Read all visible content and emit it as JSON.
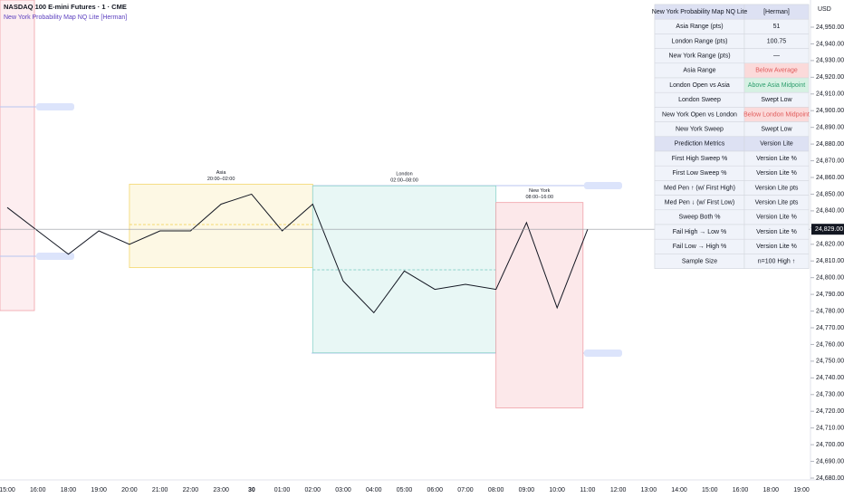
{
  "chart_data": {
    "type": "line",
    "title": "NASDAQ 100 E-mini Futures · 1 · CME",
    "subtitle": "New York Probability Map NQ Lite [Herman]",
    "color": "#131722",
    "categories": [
      "15:00",
      "16:00",
      "18:00",
      "19:00",
      "20:00",
      "21:00",
      "22:00",
      "23:00",
      "30",
      "01:00",
      "02:00",
      "03:00",
      "04:00",
      "05:00",
      "06:00",
      "07:00",
      "08:00",
      "09:00",
      "10:00",
      "11:00",
      "12:00",
      "13:00",
      "14:00",
      "15:00",
      "16:00",
      "18:00",
      "19:00"
    ],
    "values": [
      24842,
      24828,
      24814,
      24828,
      24820,
      24828,
      24828,
      24844,
      24850,
      24828,
      24844,
      24798,
      24779,
      24804,
      24793,
      24796,
      24793,
      24833,
      24782,
      24829,
      null,
      null,
      null,
      null,
      null,
      null,
      null
    ],
    "ylim": [
      24950,
      24680
    ],
    "yticks": [
      {
        "value": 24950,
        "label": "24,950.00"
      },
      {
        "value": 24940,
        "label": "24,940.00"
      },
      {
        "value": 24930,
        "label": "24,930.00"
      },
      {
        "value": 24920,
        "label": "24,920.00"
      },
      {
        "value": 24910,
        "label": "24,910.00"
      },
      {
        "value": 24900,
        "label": "24,900.00"
      },
      {
        "value": 24890,
        "label": "24,890.00"
      },
      {
        "value": 24880,
        "label": "24,880.00"
      },
      {
        "value": 24870,
        "label": "24,870.00"
      },
      {
        "value": 24860,
        "label": "24,860.00"
      },
      {
        "value": 24850,
        "label": "24,850.00"
      },
      {
        "value": 24840,
        "label": "24,840.00"
      },
      {
        "value": 24830,
        "label": "24,830.00"
      },
      {
        "value": 24820,
        "label": "24,820.00"
      },
      {
        "value": 24810,
        "label": "24,810.00"
      },
      {
        "value": 24800,
        "label": "24,800.00"
      },
      {
        "value": 24790,
        "label": "24,790.00"
      },
      {
        "value": 24780,
        "label": "24,780.00"
      },
      {
        "value": 24770,
        "label": "24,770.00"
      },
      {
        "value": 24760,
        "label": "24,760.00"
      },
      {
        "value": 24750,
        "label": "24,750.00"
      },
      {
        "value": 24740,
        "label": "24,740.00"
      },
      {
        "value": 24730,
        "label": "24,730.00"
      },
      {
        "value": 24720,
        "label": "24,720.00"
      },
      {
        "value": 24710,
        "label": "24,710.00"
      },
      {
        "value": 24700,
        "label": "24,700.00"
      },
      {
        "value": 24690,
        "label": "24,690.00"
      },
      {
        "value": 24680,
        "label": "24,680.00"
      }
    ],
    "y_unit": "USD",
    "last_value": {
      "value": 24829,
      "label": "24,829.00"
    },
    "sessions": [
      {
        "name": "Asia",
        "time": "20:00–02:00",
        "color": "#f5d76e",
        "fill": "#fdf8e4"
      },
      {
        "name": "London",
        "time": "02:00–08:00",
        "color": "#8fd3cc",
        "fill": "#e8f7f5"
      },
      {
        "name": "New York",
        "time": "08:00–16:00",
        "color": "#f0a0a8",
        "fill": "#fce8ea"
      }
    ]
  },
  "table": {
    "header": [
      "New York Probability Map NQ Lite",
      "[Herman]"
    ],
    "rows": [
      {
        "label": "Asia Range (pts)",
        "value": "51"
      },
      {
        "label": "London Range (pts)",
        "value": "100.75"
      },
      {
        "label": "New York Range (pts)",
        "value": "—"
      },
      {
        "label": "Asia Range",
        "value": "Below Average",
        "color": "#e05a5a",
        "background": "#fbdada"
      },
      {
        "label": "London Open vs Asia",
        "value": "Above Asia Midpoint",
        "color": "#2e9e6e",
        "background": "#d6f1e3"
      },
      {
        "label": "London Sweep",
        "value": "Swept Low"
      },
      {
        "label": "New York Open vs London",
        "value": "Below London Midpoint",
        "color": "#e05a5a",
        "background": "#fbdada"
      },
      {
        "label": "New York Sweep",
        "value": "Swept Low"
      },
      {
        "label": "Prediction Metrics",
        "value": "Version Lite",
        "background": "#dde1f3"
      },
      {
        "label": "First High Sweep %",
        "value": "Version Lite %"
      },
      {
        "label": "First Low Sweep %",
        "value": "Version Lite %"
      },
      {
        "label": "Med Pen ↑ (w/ First High)",
        "value": "Version Lite pts"
      },
      {
        "label": "Med Pen ↓ (w/ First Low)",
        "value": "Version Lite pts"
      },
      {
        "label": "Sweep Both %",
        "value": "Version Lite %"
      },
      {
        "label": "Fail High → Low %",
        "value": "Version Lite %"
      },
      {
        "label": "Fail Low → High %",
        "value": "Version Lite %"
      },
      {
        "label": "Sample Size",
        "value": "n=100 High ↑"
      }
    ]
  }
}
